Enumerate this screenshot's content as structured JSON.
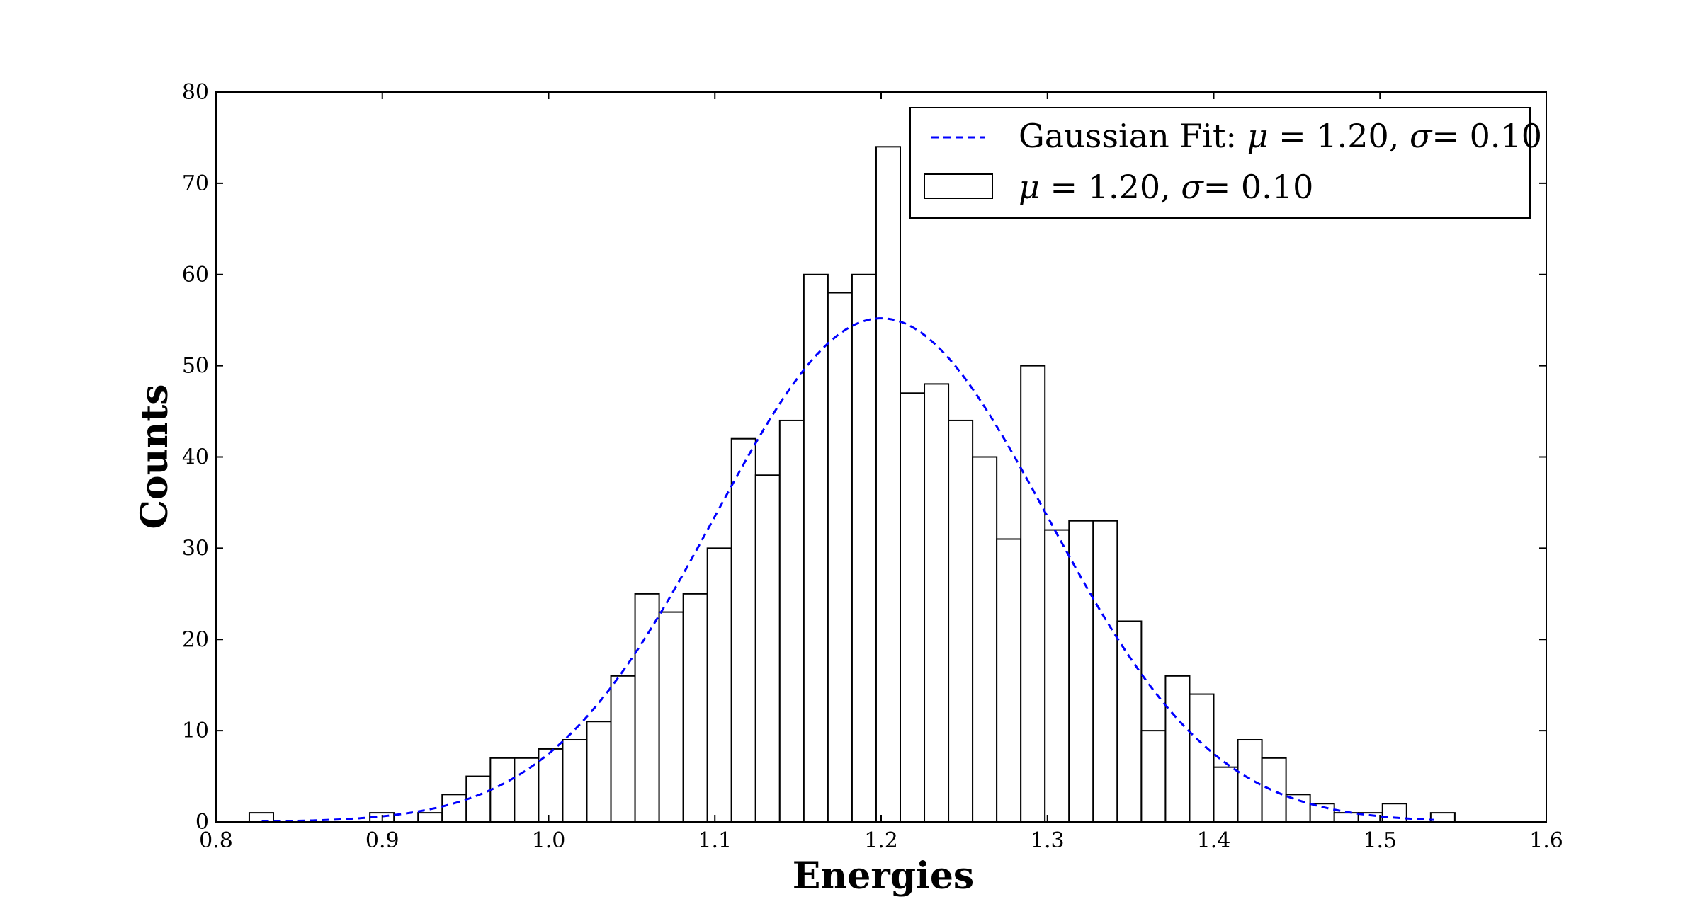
{
  "chart_data": {
    "type": "bar",
    "title": "",
    "xlabel": "Energies",
    "ylabel": "Counts",
    "xlim": [
      0.8,
      1.6
    ],
    "ylim": [
      0,
      80
    ],
    "xticks": [
      "0.8",
      "0.9",
      "1.0",
      "1.1",
      "1.2",
      "1.3",
      "1.4",
      "1.5",
      "1.6"
    ],
    "yticks": [
      "0",
      "10",
      "20",
      "30",
      "40",
      "50",
      "60",
      "70",
      "80"
    ],
    "grid": false,
    "legend_position": "top-right",
    "histogram": {
      "name": "μ = 1.20, σ= 0.10",
      "bin_start": 0.82,
      "bin_width": 0.0145,
      "counts": [
        1,
        0,
        0,
        0,
        0,
        1,
        0,
        1,
        3,
        5,
        7,
        7,
        8,
        9,
        11,
        16,
        25,
        23,
        25,
        30,
        42,
        38,
        44,
        60,
        58,
        60,
        74,
        47,
        48,
        44,
        40,
        31,
        50,
        32,
        33,
        33,
        22,
        10,
        16,
        14,
        6,
        9,
        7,
        3,
        2,
        1,
        1,
        2,
        0,
        1
      ],
      "edge_color": "#000000",
      "fill_color": "#ffffff"
    },
    "fit": {
      "name": "Gaussian Fit: μ = 1.20, σ= 0.10",
      "mu": 1.2,
      "sigma": 0.1,
      "peak": 55.2,
      "x_range": [
        0.8275,
        1.5325
      ],
      "style": "dashed",
      "color": "#0000ff"
    }
  },
  "legend": {
    "fit_label_prefix": "Gaussian Fit: ",
    "mu_symbol": "μ",
    "mu_text": " = 1.20, ",
    "sigma_symbol": "σ",
    "sigma_text": "= 0.10"
  }
}
